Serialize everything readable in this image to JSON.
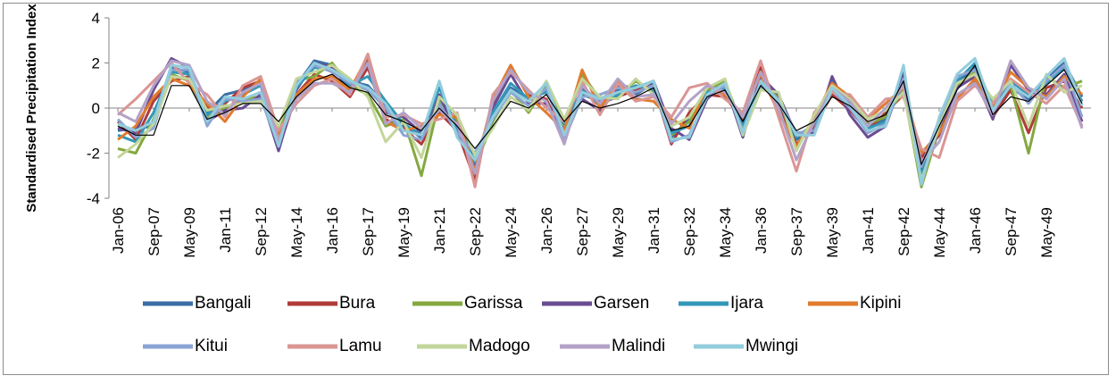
{
  "chart_data": {
    "type": "line",
    "y_label": "Standardised Precipitation Index",
    "categories": [
      "Jan-06",
      null,
      "Sep-07",
      null,
      "May-09",
      null,
      "Jan-11",
      null,
      "Sep-12",
      null,
      "May-14",
      null,
      "Jan-16",
      null,
      "Sep-17",
      null,
      "May-19",
      null,
      "Jan-21",
      null,
      "Sep-22",
      null,
      "May-24",
      null,
      "Jan-26",
      null,
      "Sep-27",
      null,
      "May-29",
      null,
      "Jan-31",
      null,
      "Sep-32",
      null,
      "May-34",
      null,
      "Jan-36",
      null,
      "Sep-37",
      null,
      "May-39",
      null,
      "Jan-41",
      null,
      "Sep-42",
      null,
      "May-44",
      null,
      "Jan-46",
      null,
      "Sep-47",
      null,
      "May-49",
      null,
      null
    ],
    "ylim": [
      -4,
      4
    ],
    "yticks": [
      -4,
      -2,
      0,
      2,
      4
    ],
    "grid": false,
    "series": [
      {
        "name": "Bangali",
        "color": "#3a6ea5",
        "values": [
          -1.0,
          -0.9,
          -0.8,
          1.8,
          1.6,
          -0.2,
          0.6,
          0.8,
          1.1,
          -1.5,
          1.0,
          2.1,
          1.9,
          1.2,
          1.0,
          0.1,
          -0.8,
          -1.3,
          0.4,
          -0.6,
          -2.2,
          -0.3,
          0.9,
          0.4,
          0.8,
          -0.9,
          0.6,
          0.3,
          0.8,
          0.6,
          1.1,
          -1.3,
          -0.5,
          0.9,
          1.0,
          -0.8,
          1.2,
          0.5,
          -1.4,
          -0.9,
          1.2,
          0.2,
          -0.8,
          -0.5,
          1.6,
          -2.8,
          -0.6,
          1.1,
          1.8,
          -0.1,
          0.9,
          0.4,
          1.3,
          2.0,
          0.5
        ]
      },
      {
        "name": "Bura",
        "color": "#b03b38",
        "values": [
          -0.6,
          -1.4,
          0.3,
          1.2,
          1.4,
          0.0,
          0.2,
          0.9,
          1.2,
          -1.8,
          0.6,
          1.5,
          1.2,
          0.5,
          1.8,
          -0.5,
          -0.9,
          -1.6,
          -0.2,
          -1.0,
          -3.2,
          0.2,
          1.8,
          0.6,
          0.4,
          -1.3,
          0.9,
          0.2,
          0.5,
          0.8,
          1.0,
          -1.6,
          -0.2,
          0.6,
          0.5,
          -0.5,
          1.8,
          0.1,
          -1.6,
          -0.8,
          0.6,
          -0.1,
          -1.0,
          -0.2,
          0.6,
          -2.2,
          -1.2,
          0.5,
          1.2,
          -0.4,
          0.8,
          -1.1,
          0.9,
          1.2,
          0.0
        ]
      },
      {
        "name": "Garissa",
        "color": "#84a83f",
        "values": [
          -1.8,
          -2.0,
          -0.5,
          1.5,
          1.2,
          -0.4,
          0.0,
          0.4,
          0.5,
          -1.0,
          1.2,
          1.4,
          2.0,
          1.0,
          0.6,
          -0.8,
          -0.5,
          -3.0,
          0.3,
          -0.5,
          -2.6,
          -0.6,
          0.8,
          -0.2,
          1.0,
          -0.8,
          1.5,
          0.4,
          0.5,
          1.2,
          0.7,
          -1.2,
          -0.6,
          0.8,
          1.2,
          -0.9,
          0.9,
          0.5,
          -1.8,
          -0.5,
          0.9,
          0.3,
          -0.7,
          -0.4,
          0.8,
          -3.5,
          -0.9,
          1.0,
          1.6,
          0.2,
          1.0,
          -2.0,
          1.4,
          0.9,
          1.2
        ]
      },
      {
        "name": "Garsen",
        "color": "#6a4c93",
        "values": [
          -0.9,
          -1.1,
          0.8,
          2.2,
          1.8,
          -0.6,
          -0.1,
          0.0,
          0.6,
          -1.9,
          0.8,
          2.0,
          1.8,
          0.8,
          2.2,
          -0.2,
          -0.4,
          -1.1,
          0.6,
          -1.2,
          -2.5,
          0.0,
          1.5,
          0.2,
          0.2,
          -1.0,
          0.4,
          -0.1,
          1.0,
          0.9,
          1.2,
          -0.9,
          -1.4,
          0.4,
          1.1,
          -1.3,
          1.4,
          0.6,
          -1.2,
          -1.1,
          1.4,
          -0.3,
          -1.3,
          -0.8,
          1.4,
          -2.9,
          -1.0,
          0.9,
          1.4,
          -0.5,
          1.9,
          0.8,
          0.6,
          1.5,
          -0.6
        ]
      },
      {
        "name": "Ijara",
        "color": "#3397b8",
        "values": [
          -1.2,
          -1.5,
          -0.2,
          1.6,
          1.5,
          -0.3,
          0.3,
          0.6,
          1.0,
          -1.3,
          0.9,
          1.8,
          1.7,
          1.0,
          1.4,
          0.3,
          -0.7,
          -1.2,
          0.9,
          -0.9,
          -2.4,
          -0.2,
          1.1,
          0.4,
          0.7,
          -0.7,
          0.8,
          0.1,
          0.6,
          1.0,
          0.8,
          -1.1,
          -0.8,
          0.7,
          0.9,
          -0.7,
          1.1,
          0.3,
          -1.3,
          -0.7,
          1.0,
          0.4,
          -0.9,
          -0.6,
          1.1,
          -3.0,
          -0.7,
          1.2,
          2.0,
          0.1,
          1.2,
          0.6,
          1.1,
          1.8,
          0.3
        ]
      },
      {
        "name": "Kipini",
        "color": "#e07b2e",
        "values": [
          -1.4,
          -0.8,
          0.5,
          1.3,
          1.0,
          0.2,
          -0.6,
          0.5,
          1.3,
          -1.2,
          0.6,
          1.3,
          1.4,
          0.8,
          2.3,
          -0.6,
          -1.0,
          -0.8,
          -0.3,
          -0.4,
          -2.8,
          0.4,
          1.9,
          0.5,
          -0.2,
          -1.0,
          1.7,
          0.0,
          1.2,
          0.4,
          0.3,
          -0.5,
          -0.9,
          1.0,
          0.6,
          -0.3,
          1.5,
          -0.2,
          -1.7,
          -0.4,
          1.1,
          0.5,
          -0.5,
          0.2,
          0.9,
          -2.0,
          -1.1,
          0.4,
          1.3,
          0.0,
          1.6,
          0.9,
          0.5,
          1.4,
          0.6
        ]
      },
      {
        "name": "Kitui",
        "color": "#8aa4d4",
        "values": [
          -0.5,
          -1.3,
          -0.9,
          1.7,
          1.7,
          -0.8,
          0.4,
          0.3,
          0.4,
          -1.6,
          1.1,
          1.9,
          1.6,
          1.1,
          0.8,
          0.0,
          -1.2,
          -1.4,
          0.2,
          -1.1,
          -2.0,
          -0.5,
          0.7,
          0.1,
          0.9,
          -1.4,
          0.5,
          0.6,
          0.9,
          0.7,
          1.0,
          -1.5,
          -1.2,
          0.5,
          1.0,
          -1.0,
          1.0,
          0.4,
          -1.1,
          -1.0,
          0.8,
          0.0,
          -1.1,
          -0.7,
          1.3,
          -2.6,
          -0.5,
          1.4,
          1.7,
          -0.2,
          1.1,
          0.2,
          1.2,
          1.9,
          -0.4
        ]
      },
      {
        "name": "Lamu",
        "color": "#d99694",
        "values": [
          -0.3,
          0.4,
          1.2,
          2.0,
          1.1,
          0.6,
          -0.4,
          1.0,
          1.4,
          -1.0,
          0.2,
          1.0,
          1.3,
          0.6,
          2.4,
          -0.4,
          -0.3,
          -0.7,
          -0.5,
          -0.2,
          -3.5,
          0.6,
          1.6,
          0.8,
          0.0,
          -0.6,
          1.2,
          -0.3,
          1.1,
          0.3,
          0.5,
          -0.4,
          0.9,
          1.1,
          0.4,
          -0.2,
          2.1,
          -0.4,
          -2.8,
          -0.2,
          0.7,
          0.6,
          -0.4,
          0.4,
          0.5,
          -1.8,
          -2.2,
          0.3,
          1.0,
          0.2,
          1.3,
          0.7,
          0.2,
          1.0,
          -0.8
        ]
      },
      {
        "name": "Madogo",
        "color": "#c3d69b",
        "values": [
          -2.2,
          -1.6,
          -0.7,
          1.4,
          1.3,
          -0.1,
          0.1,
          0.2,
          0.3,
          -0.8,
          1.3,
          1.6,
          1.9,
          1.3,
          0.5,
          -1.5,
          -0.6,
          -2.2,
          0.5,
          -0.3,
          -2.1,
          -0.9,
          0.5,
          -0.1,
          1.2,
          -0.5,
          1.3,
          0.5,
          0.4,
          1.3,
          0.6,
          -0.8,
          -0.4,
          0.9,
          1.3,
          -1.2,
          0.8,
          0.7,
          -1.9,
          -0.3,
          1.0,
          0.4,
          -0.5,
          -0.1,
          0.7,
          -3.2,
          -0.8,
          1.1,
          1.5,
          0.4,
          1.2,
          -0.8,
          1.5,
          0.7,
          1.0
        ]
      },
      {
        "name": "Malindi",
        "color": "#b3a2c7",
        "values": [
          -0.2,
          -0.6,
          1.0,
          2.1,
          1.9,
          0.3,
          -0.3,
          0.7,
          1.1,
          -1.4,
          0.4,
          1.1,
          1.1,
          0.7,
          2.0,
          -0.7,
          -0.2,
          -0.9,
          -0.1,
          -0.7,
          -2.9,
          0.3,
          1.7,
          0.7,
          0.3,
          -1.6,
          1.0,
          0.2,
          1.3,
          0.5,
          0.6,
          -0.7,
          0.3,
          1.0,
          0.7,
          -0.4,
          1.6,
          0.0,
          -2.3,
          -0.6,
          0.9,
          0.3,
          -0.8,
          0.0,
          1.0,
          -2.4,
          -1.5,
          0.6,
          1.1,
          -0.3,
          2.1,
          0.9,
          0.4,
          1.3,
          -0.9
        ]
      },
      {
        "name": "Mwingi",
        "color": "#93cddd",
        "values": [
          -0.7,
          -1.0,
          -0.6,
          1.9,
          1.8,
          -0.6,
          0.5,
          0.4,
          0.7,
          -1.7,
          1.0,
          2.0,
          1.7,
          1.2,
          0.9,
          0.2,
          -1.0,
          -1.2,
          1.2,
          -1.3,
          -2.3,
          -0.4,
          0.8,
          0.3,
          1.1,
          -1.2,
          0.7,
          0.4,
          0.7,
          0.9,
          1.2,
          -1.4,
          -1.3,
          0.6,
          1.1,
          -1.1,
          1.2,
          0.3,
          -1.2,
          -1.2,
          0.9,
          0.1,
          -1.0,
          -0.8,
          1.9,
          -3.4,
          -0.4,
          1.5,
          2.2,
          -0.1,
          1.0,
          0.5,
          1.4,
          2.2,
          0.1
        ]
      },
      {
        "color": "#000000",
        "values": [
          -0.8,
          -1.2,
          -1.2,
          1.0,
          1.0,
          -0.5,
          -0.2,
          0.2,
          0.2,
          -0.6,
          0.5,
          1.2,
          1.5,
          0.9,
          0.7,
          -0.3,
          -0.6,
          -1.0,
          0.0,
          -0.8,
          -1.8,
          -0.8,
          0.3,
          0.0,
          0.6,
          -0.6,
          0.3,
          0.0,
          0.2,
          0.5,
          0.9,
          -1.0,
          -0.8,
          0.5,
          0.8,
          -0.6,
          1.0,
          0.2,
          -1.0,
          -0.6,
          0.5,
          0.1,
          -0.6,
          -0.3,
          1.2,
          -2.5,
          -0.8,
          0.8,
          1.9,
          -0.3,
          0.5,
          0.3,
          1.0,
          1.7,
          0.2
        ]
      }
    ]
  }
}
